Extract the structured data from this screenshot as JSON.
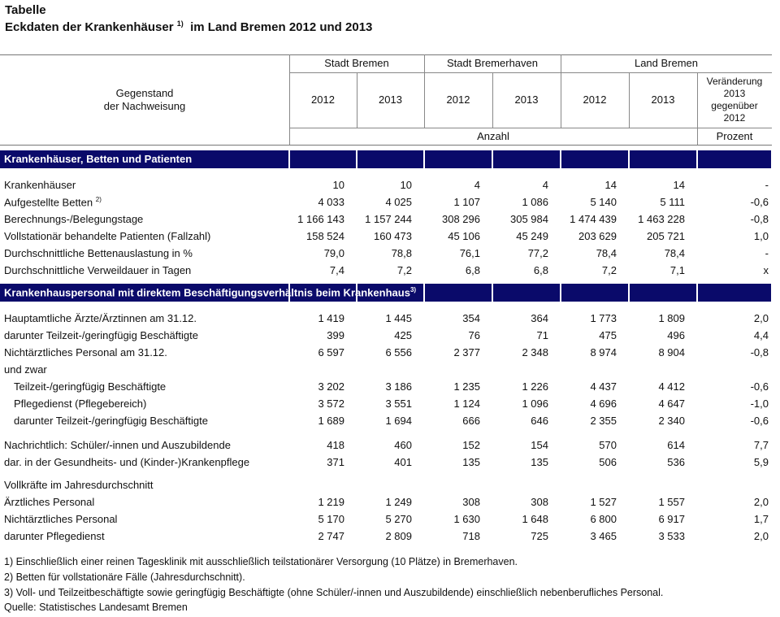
{
  "title": "Tabelle",
  "subtitle": {
    "text": "Eckdaten der Krankenhäuser",
    "note": "1)",
    "rest": "im Land Bremen 2012 und 2013"
  },
  "header": {
    "stub": [
      "Gegenstand",
      "der Nachweisung"
    ],
    "groups": [
      "Stadt Bremen",
      "Stadt Bremerhaven",
      "Land Bremen"
    ],
    "years": [
      "2012",
      "2013",
      "2012",
      "2013",
      "2012",
      "2013"
    ],
    "change": [
      "Veränderung",
      "2013",
      "gegenüber",
      "2012"
    ],
    "unit_count": "Anzahl",
    "unit_percent": "Prozent"
  },
  "colors": {
    "section_bar": "#0a0a6a"
  },
  "sections": [
    {
      "title": "Krankenhäuser, Betten und Patienten",
      "note": "",
      "rows": [
        {
          "label": "Krankenhäuser",
          "note": "",
          "values": [
            "10",
            "10",
            "4",
            "4",
            "14",
            "14",
            "-"
          ]
        },
        {
          "label": "Aufgestellte Betten",
          "note": "2)",
          "values": [
            "4 033",
            "4 025",
            "1 107",
            "1 086",
            "5 140",
            "5 111",
            "-0,6"
          ]
        },
        {
          "label": "Berechnungs-/Belegungstage",
          "note": "",
          "values": [
            "1 166 143",
            "1 157 244",
            "308 296",
            "305 984",
            "1 474 439",
            "1 463 228",
            "-0,8"
          ]
        },
        {
          "label": "Vollstationär behandelte Patienten (Fallzahl)",
          "note": "",
          "values": [
            "158 524",
            "160 473",
            "45 106",
            "45 249",
            "203 629",
            "205 721",
            "1,0"
          ]
        },
        {
          "label": "Durchschnittliche Bettenauslastung in %",
          "note": "",
          "values": [
            "79,0",
            "78,8",
            "76,1",
            "77,2",
            "78,4",
            "78,4",
            "-"
          ]
        },
        {
          "label": "Durchschnittliche Verweildauer in Tagen",
          "note": "",
          "values": [
            "7,4",
            "7,2",
            "6,8",
            "6,8",
            "7,2",
            "7,1",
            "x"
          ]
        }
      ]
    },
    {
      "title": "Krankenhauspersonal mit direktem Beschäftigungsverhältnis beim Krankenhaus",
      "note": "3)",
      "rows": [
        {
          "label": "Hauptamtliche Ärzte/Ärztinnen am 31.12.",
          "note": "",
          "values": [
            "1 419",
            "1 445",
            "354",
            "364",
            "1 773",
            "1 809",
            "2,0"
          ]
        },
        {
          "label": "darunter Teilzeit-/geringfügig Beschäftigte",
          "note": "",
          "values": [
            "399",
            "425",
            "76",
            "71",
            "475",
            "496",
            "4,4"
          ]
        },
        {
          "label": "Nichtärztliches Personal am 31.12.",
          "note": "",
          "values": [
            "6 597",
            "6 556",
            "2 377",
            "2 348",
            "8 974",
            "8 904",
            "-0,8"
          ]
        },
        {
          "label": "und zwar",
          "note": "",
          "values": []
        },
        {
          "label": "Teilzeit-/geringfügig Beschäftigte",
          "note": "",
          "indent": true,
          "values": [
            "3 202",
            "3 186",
            "1 235",
            "1 226",
            "4 437",
            "4 412",
            "-0,6"
          ]
        },
        {
          "label": "Pflegedienst (Pflegebereich)",
          "note": "",
          "indent": true,
          "values": [
            "3 572",
            "3 551",
            "1 124",
            "1 096",
            "4 696",
            "4 647",
            "-1,0"
          ]
        },
        {
          "label": "darunter Teilzeit-/geringfügig Beschäftigte",
          "note": "",
          "indent": true,
          "values": [
            "1 689",
            "1 694",
            "666",
            "646",
            "2 355",
            "2 340",
            "-0,6"
          ]
        },
        {
          "label": "Nachrichtlich: Schüler/-innen und Auszubildende",
          "note": "",
          "values": [
            "418",
            "460",
            "152",
            "154",
            "570",
            "614",
            "7,7"
          ]
        },
        {
          "label": "dar. in der Gesundheits- und (Kinder-)Krankenpflege",
          "note": "",
          "values": [
            "371",
            "401",
            "135",
            "135",
            "506",
            "536",
            "5,9"
          ]
        },
        {
          "label": "Vollkräfte im Jahresdurchschnitt",
          "note": "",
          "values": []
        },
        {
          "label": "Ärztliches Personal",
          "note": "",
          "values": [
            "1 219",
            "1 249",
            "308",
            "308",
            "1 527",
            "1 557",
            "2,0"
          ]
        },
        {
          "label": "Nichtärztliches Personal",
          "note": "",
          "values": [
            "5 170",
            "5 270",
            "1 630",
            "1 648",
            "6 800",
            "6 917",
            "1,7"
          ]
        },
        {
          "label": "darunter Pflegedienst",
          "note": "",
          "values": [
            "2 747",
            "2 809",
            "718",
            "725",
            "3 465",
            "3 533",
            "2,0"
          ]
        }
      ]
    }
  ],
  "footnotes": [
    "1)  Einschließlich einer reinen Tagesklinik mit ausschließlich teilstationärer Versorgung (10 Plätze) in Bremerhaven.",
    "2)  Betten für vollstationäre Fälle (Jahresdurchschnitt).",
    "3)  Voll- und Teilzeitbeschäftigte sowie geringfügig Beschäftigte (ohne Schüler/-innen und Auszubildende) einschließlich nebenberufliches Personal.",
    "Quelle: Statistisches Landesamt Bremen"
  ]
}
